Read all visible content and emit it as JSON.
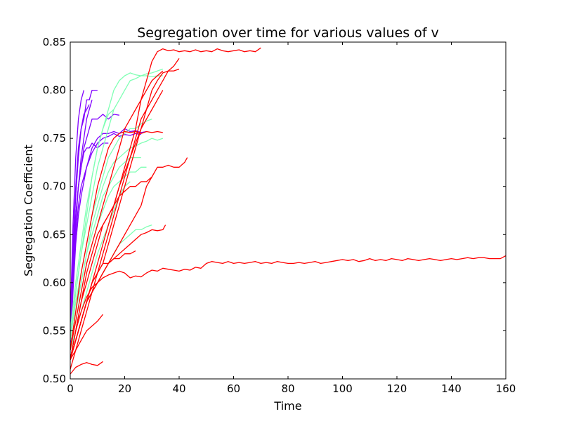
{
  "chart_data": {
    "type": "line",
    "title": "Segregation over time for various values of v",
    "xlabel": "Time",
    "ylabel": "Segregation Coefficient",
    "xlim": [
      0,
      160
    ],
    "ylim": [
      0.5,
      0.85
    ],
    "xticks": [
      "0",
      "20",
      "40",
      "60",
      "80",
      "100",
      "120",
      "140",
      "160"
    ],
    "yticks": [
      "0.50",
      "0.55",
      "0.60",
      "0.65",
      "0.70",
      "0.75",
      "0.80",
      "0.85"
    ],
    "grid": false,
    "legend": "none",
    "series": [
      {
        "color": "#8000ff",
        "x": [
          0,
          1,
          2,
          3,
          4,
          5
        ],
        "y": [
          0.56,
          0.66,
          0.73,
          0.77,
          0.79,
          0.8
        ]
      },
      {
        "color": "#8000ff",
        "x": [
          0,
          1,
          2,
          3,
          4,
          5,
          6,
          7,
          8,
          9,
          10
        ],
        "y": [
          0.55,
          0.63,
          0.69,
          0.73,
          0.76,
          0.77,
          0.79,
          0.79,
          0.8,
          0.8,
          0.8
        ]
      },
      {
        "color": "#8000ff",
        "x": [
          0,
          1,
          2,
          3,
          4,
          5,
          6,
          7,
          8
        ],
        "y": [
          0.54,
          0.61,
          0.66,
          0.7,
          0.73,
          0.75,
          0.77,
          0.78,
          0.79
        ]
      },
      {
        "color": "#8000ff",
        "x": [
          0,
          1,
          2,
          3,
          4,
          5,
          6,
          7,
          8,
          9,
          10,
          12,
          14,
          16,
          18
        ],
        "y": [
          0.55,
          0.62,
          0.67,
          0.7,
          0.72,
          0.74,
          0.75,
          0.76,
          0.77,
          0.77,
          0.77,
          0.775,
          0.77,
          0.775,
          0.774
        ]
      },
      {
        "color": "#8000ff",
        "x": [
          0,
          1,
          2,
          3,
          4,
          6,
          8,
          10,
          12,
          14,
          16,
          18,
          20,
          22,
          24,
          26,
          28
        ],
        "y": [
          0.54,
          0.6,
          0.65,
          0.68,
          0.7,
          0.72,
          0.74,
          0.75,
          0.755,
          0.755,
          0.757,
          0.755,
          0.76,
          0.757,
          0.758,
          0.756,
          0.757
        ]
      },
      {
        "color": "#8000ff",
        "x": [
          0,
          1,
          2,
          3,
          4,
          6,
          8,
          10,
          12,
          14,
          16,
          18,
          20,
          22,
          24,
          26
        ],
        "y": [
          0.53,
          0.59,
          0.64,
          0.67,
          0.69,
          0.72,
          0.735,
          0.745,
          0.75,
          0.752,
          0.755,
          0.752,
          0.754,
          0.753,
          0.755,
          0.754
        ]
      },
      {
        "color": "#8000ff",
        "x": [
          0,
          1,
          2,
          3,
          4,
          5,
          6,
          7,
          8,
          10,
          12,
          14
        ],
        "y": [
          0.55,
          0.62,
          0.67,
          0.7,
          0.72,
          0.735,
          0.74,
          0.74,
          0.745,
          0.74,
          0.745,
          0.745
        ]
      },
      {
        "color": "#8000ff",
        "x": [
          0,
          1,
          2,
          3,
          4,
          5,
          6,
          7
        ],
        "y": [
          0.56,
          0.64,
          0.7,
          0.74,
          0.76,
          0.775,
          0.78,
          0.785
        ]
      },
      {
        "color": "#80ffb4",
        "x": [
          0,
          2,
          4,
          6,
          8,
          10,
          12,
          14,
          16,
          18,
          20,
          22,
          24,
          26,
          28,
          30,
          32,
          34
        ],
        "y": [
          0.55,
          0.6,
          0.64,
          0.68,
          0.71,
          0.74,
          0.76,
          0.78,
          0.8,
          0.81,
          0.815,
          0.818,
          0.816,
          0.815,
          0.815,
          0.814,
          0.815,
          0.815
        ]
      },
      {
        "color": "#80ffb4",
        "x": [
          0,
          2,
          4,
          6,
          8,
          10,
          12,
          14,
          16,
          18,
          20,
          22,
          24,
          26,
          28,
          30,
          32,
          34
        ],
        "y": [
          0.54,
          0.59,
          0.63,
          0.66,
          0.69,
          0.72,
          0.74,
          0.76,
          0.78,
          0.79,
          0.8,
          0.81,
          0.812,
          0.815,
          0.817,
          0.818,
          0.82,
          0.822
        ]
      },
      {
        "color": "#80ffb4",
        "x": [
          0,
          2,
          4,
          6,
          8,
          10,
          12,
          14,
          16,
          18,
          20,
          22,
          24,
          26,
          28,
          30
        ],
        "y": [
          0.54,
          0.58,
          0.61,
          0.64,
          0.67,
          0.69,
          0.71,
          0.73,
          0.74,
          0.75,
          0.755,
          0.76,
          0.76,
          0.765,
          0.768,
          0.77
        ]
      },
      {
        "color": "#80ffb4",
        "x": [
          0,
          2,
          4,
          6,
          8,
          10,
          12,
          14,
          16,
          18,
          20,
          22,
          24,
          26,
          28,
          30,
          32,
          34
        ],
        "y": [
          0.53,
          0.57,
          0.6,
          0.63,
          0.66,
          0.68,
          0.7,
          0.715,
          0.725,
          0.73,
          0.735,
          0.74,
          0.742,
          0.745,
          0.747,
          0.75,
          0.748,
          0.75
        ]
      },
      {
        "color": "#80ffb4",
        "x": [
          0,
          2,
          4,
          6,
          8,
          10,
          12,
          14,
          16,
          18,
          20,
          22,
          24,
          26,
          28
        ],
        "y": [
          0.53,
          0.56,
          0.59,
          0.62,
          0.64,
          0.66,
          0.675,
          0.69,
          0.7,
          0.705,
          0.71,
          0.715,
          0.715,
          0.72,
          0.72
        ]
      },
      {
        "color": "#80ffb4",
        "x": [
          0,
          2,
          4,
          6,
          8,
          10,
          12,
          14,
          16,
          18,
          20,
          22
        ],
        "y": [
          0.53,
          0.55,
          0.57,
          0.59,
          0.61,
          0.63,
          0.645,
          0.66,
          0.675,
          0.69,
          0.7,
          0.705
        ]
      },
      {
        "color": "#80ffb4",
        "x": [
          0,
          2,
          4,
          6,
          8,
          10,
          12,
          14,
          16,
          18,
          20,
          22,
          24,
          26,
          28,
          30
        ],
        "y": [
          0.52,
          0.54,
          0.56,
          0.58,
          0.59,
          0.6,
          0.61,
          0.62,
          0.63,
          0.64,
          0.645,
          0.65,
          0.655,
          0.655,
          0.658,
          0.66
        ]
      },
      {
        "color": "#80ffb4",
        "x": [
          0,
          2,
          4,
          6,
          8,
          10,
          12,
          14,
          16
        ],
        "y": [
          0.54,
          0.59,
          0.63,
          0.67,
          0.71,
          0.74,
          0.76,
          0.775,
          0.78
        ]
      },
      {
        "color": "#80ffb4",
        "x": [
          0,
          2,
          4,
          6,
          8,
          10,
          12,
          14,
          16,
          18,
          20,
          22,
          24,
          26
        ],
        "y": [
          0.53,
          0.57,
          0.6,
          0.63,
          0.65,
          0.67,
          0.69,
          0.7,
          0.71,
          0.72,
          0.725,
          0.73,
          0.73,
          0.73
        ]
      },
      {
        "color": "#ff0000",
        "x": [
          0,
          2,
          4,
          6,
          8,
          10,
          12,
          14,
          16,
          18,
          20,
          22,
          24,
          26,
          28,
          30,
          32,
          34,
          36,
          38,
          40,
          42,
          44,
          46,
          48,
          50,
          52,
          54,
          56,
          58,
          60,
          62,
          64,
          66,
          68,
          70
        ],
        "y": [
          0.52,
          0.55,
          0.58,
          0.61,
          0.63,
          0.65,
          0.66,
          0.67,
          0.68,
          0.7,
          0.72,
          0.74,
          0.76,
          0.79,
          0.81,
          0.83,
          0.84,
          0.843,
          0.841,
          0.842,
          0.84,
          0.841,
          0.84,
          0.842,
          0.84,
          0.841,
          0.84,
          0.843,
          0.841,
          0.84,
          0.841,
          0.842,
          0.84,
          0.841,
          0.84,
          0.844
        ]
      },
      {
        "color": "#ff0000",
        "x": [
          0,
          2,
          4,
          6,
          8,
          10,
          12,
          14,
          16,
          18,
          20,
          22,
          24,
          26,
          28,
          30,
          32,
          34,
          36,
          38,
          40
        ],
        "y": [
          0.52,
          0.54,
          0.56,
          0.58,
          0.6,
          0.61,
          0.62,
          0.64,
          0.66,
          0.68,
          0.7,
          0.72,
          0.74,
          0.76,
          0.78,
          0.8,
          0.81,
          0.818,
          0.82,
          0.82,
          0.822
        ]
      },
      {
        "color": "#ff0000",
        "x": [
          0,
          2,
          4,
          6,
          8,
          10,
          12,
          14,
          16,
          18,
          20,
          22,
          24,
          26,
          28,
          30,
          32,
          34,
          36,
          38,
          40
        ],
        "y": [
          0.51,
          0.53,
          0.55,
          0.57,
          0.59,
          0.61,
          0.63,
          0.65,
          0.67,
          0.69,
          0.71,
          0.73,
          0.75,
          0.77,
          0.78,
          0.79,
          0.8,
          0.81,
          0.82,
          0.825,
          0.833
        ]
      },
      {
        "color": "#ff0000",
        "x": [
          0,
          2,
          4,
          6,
          8,
          10,
          12,
          14,
          16,
          18,
          20,
          22,
          24,
          26,
          28,
          30,
          32,
          34
        ],
        "y": [
          0.53,
          0.56,
          0.59,
          0.62,
          0.64,
          0.66,
          0.68,
          0.7,
          0.72,
          0.74,
          0.76,
          0.77,
          0.78,
          0.79,
          0.8,
          0.81,
          0.815,
          0.82
        ]
      },
      {
        "color": "#ff0000",
        "x": [
          0,
          2,
          4,
          6,
          8,
          10,
          12,
          14,
          16,
          18,
          20,
          22,
          24,
          26,
          28,
          30,
          32,
          34
        ],
        "y": [
          0.52,
          0.54,
          0.56,
          0.58,
          0.6,
          0.62,
          0.64,
          0.66,
          0.68,
          0.7,
          0.715,
          0.73,
          0.745,
          0.76,
          0.77,
          0.78,
          0.79,
          0.8
        ]
      },
      {
        "color": "#ff0000",
        "x": [
          0,
          2,
          4,
          6,
          8,
          10,
          12,
          14,
          16,
          18,
          20,
          22,
          24,
          26,
          28,
          30,
          32,
          34
        ],
        "y": [
          0.53,
          0.57,
          0.61,
          0.64,
          0.67,
          0.7,
          0.72,
          0.74,
          0.75,
          0.755,
          0.757,
          0.756,
          0.757,
          0.755,
          0.757,
          0.756,
          0.757,
          0.756
        ]
      },
      {
        "color": "#ff0000",
        "x": [
          0,
          2,
          4,
          6,
          8,
          10,
          12,
          14,
          16,
          18,
          20,
          22,
          24,
          26,
          28,
          30,
          32,
          34,
          36,
          38,
          40,
          42,
          43
        ],
        "y": [
          0.52,
          0.54,
          0.56,
          0.58,
          0.59,
          0.6,
          0.61,
          0.62,
          0.63,
          0.64,
          0.65,
          0.66,
          0.67,
          0.68,
          0.7,
          0.71,
          0.72,
          0.72,
          0.722,
          0.72,
          0.72,
          0.725,
          0.73
        ]
      },
      {
        "color": "#ff0000",
        "x": [
          0,
          2,
          4,
          6,
          8,
          10,
          12,
          14,
          16,
          18,
          20,
          22,
          24,
          26,
          28,
          30
        ],
        "y": [
          0.52,
          0.55,
          0.58,
          0.6,
          0.62,
          0.64,
          0.66,
          0.67,
          0.68,
          0.69,
          0.695,
          0.7,
          0.7,
          0.705,
          0.705,
          0.71
        ]
      },
      {
        "color": "#ff0000",
        "x": [
          0,
          2,
          4,
          6,
          8,
          10,
          12,
          14,
          16,
          18,
          20,
          22,
          24,
          26,
          28,
          30,
          32,
          34,
          35
        ],
        "y": [
          0.52,
          0.54,
          0.56,
          0.58,
          0.59,
          0.6,
          0.61,
          0.62,
          0.625,
          0.63,
          0.635,
          0.64,
          0.645,
          0.65,
          0.652,
          0.655,
          0.654,
          0.655,
          0.66
        ]
      },
      {
        "color": "#ff0000",
        "x": [
          0,
          2,
          4,
          6,
          8,
          10,
          12,
          14,
          16,
          18,
          20,
          22,
          24
        ],
        "y": [
          0.52,
          0.54,
          0.56,
          0.58,
          0.6,
          0.61,
          0.62,
          0.62,
          0.625,
          0.625,
          0.63,
          0.63,
          0.633
        ]
      },
      {
        "color": "#ff0000",
        "x": [
          0,
          2,
          4,
          6,
          8,
          10,
          12,
          14,
          16,
          18,
          20,
          22,
          24,
          26,
          28,
          30,
          32,
          34,
          36,
          38,
          40,
          42,
          44,
          46,
          48,
          50,
          52,
          54,
          56,
          58,
          60,
          62,
          64,
          66,
          68,
          70,
          72,
          74,
          76,
          78,
          80,
          82,
          84,
          86,
          88,
          90,
          92,
          94,
          96,
          98,
          100,
          102,
          104,
          106,
          108,
          110,
          112,
          114,
          116,
          118,
          120,
          122,
          124,
          126,
          128,
          130,
          132,
          134,
          136,
          138,
          140,
          142,
          144,
          146,
          148,
          150,
          152,
          154,
          156,
          158,
          160
        ],
        "y": [
          0.52,
          0.55,
          0.57,
          0.585,
          0.595,
          0.6,
          0.605,
          0.608,
          0.61,
          0.612,
          0.61,
          0.605,
          0.607,
          0.606,
          0.61,
          0.613,
          0.612,
          0.615,
          0.614,
          0.613,
          0.612,
          0.614,
          0.613,
          0.616,
          0.615,
          0.62,
          0.622,
          0.621,
          0.62,
          0.622,
          0.62,
          0.621,
          0.62,
          0.621,
          0.622,
          0.62,
          0.621,
          0.62,
          0.622,
          0.621,
          0.62,
          0.62,
          0.621,
          0.62,
          0.621,
          0.622,
          0.62,
          0.621,
          0.622,
          0.623,
          0.624,
          0.623,
          0.624,
          0.622,
          0.623,
          0.625,
          0.623,
          0.624,
          0.623,
          0.625,
          0.624,
          0.623,
          0.625,
          0.624,
          0.623,
          0.624,
          0.625,
          0.624,
          0.623,
          0.624,
          0.625,
          0.624,
          0.625,
          0.626,
          0.625,
          0.626,
          0.626,
          0.625,
          0.625,
          0.625,
          0.628
        ]
      },
      {
        "color": "#ff0000",
        "x": [
          0,
          2,
          4,
          6,
          8,
          10,
          12
        ],
        "y": [
          0.505,
          0.512,
          0.515,
          0.517,
          0.515,
          0.514,
          0.518
        ]
      },
      {
        "color": "#ff0000",
        "x": [
          0,
          2,
          4,
          6,
          8,
          10,
          12
        ],
        "y": [
          0.52,
          0.53,
          0.54,
          0.55,
          0.555,
          0.56,
          0.567
        ]
      }
    ]
  }
}
